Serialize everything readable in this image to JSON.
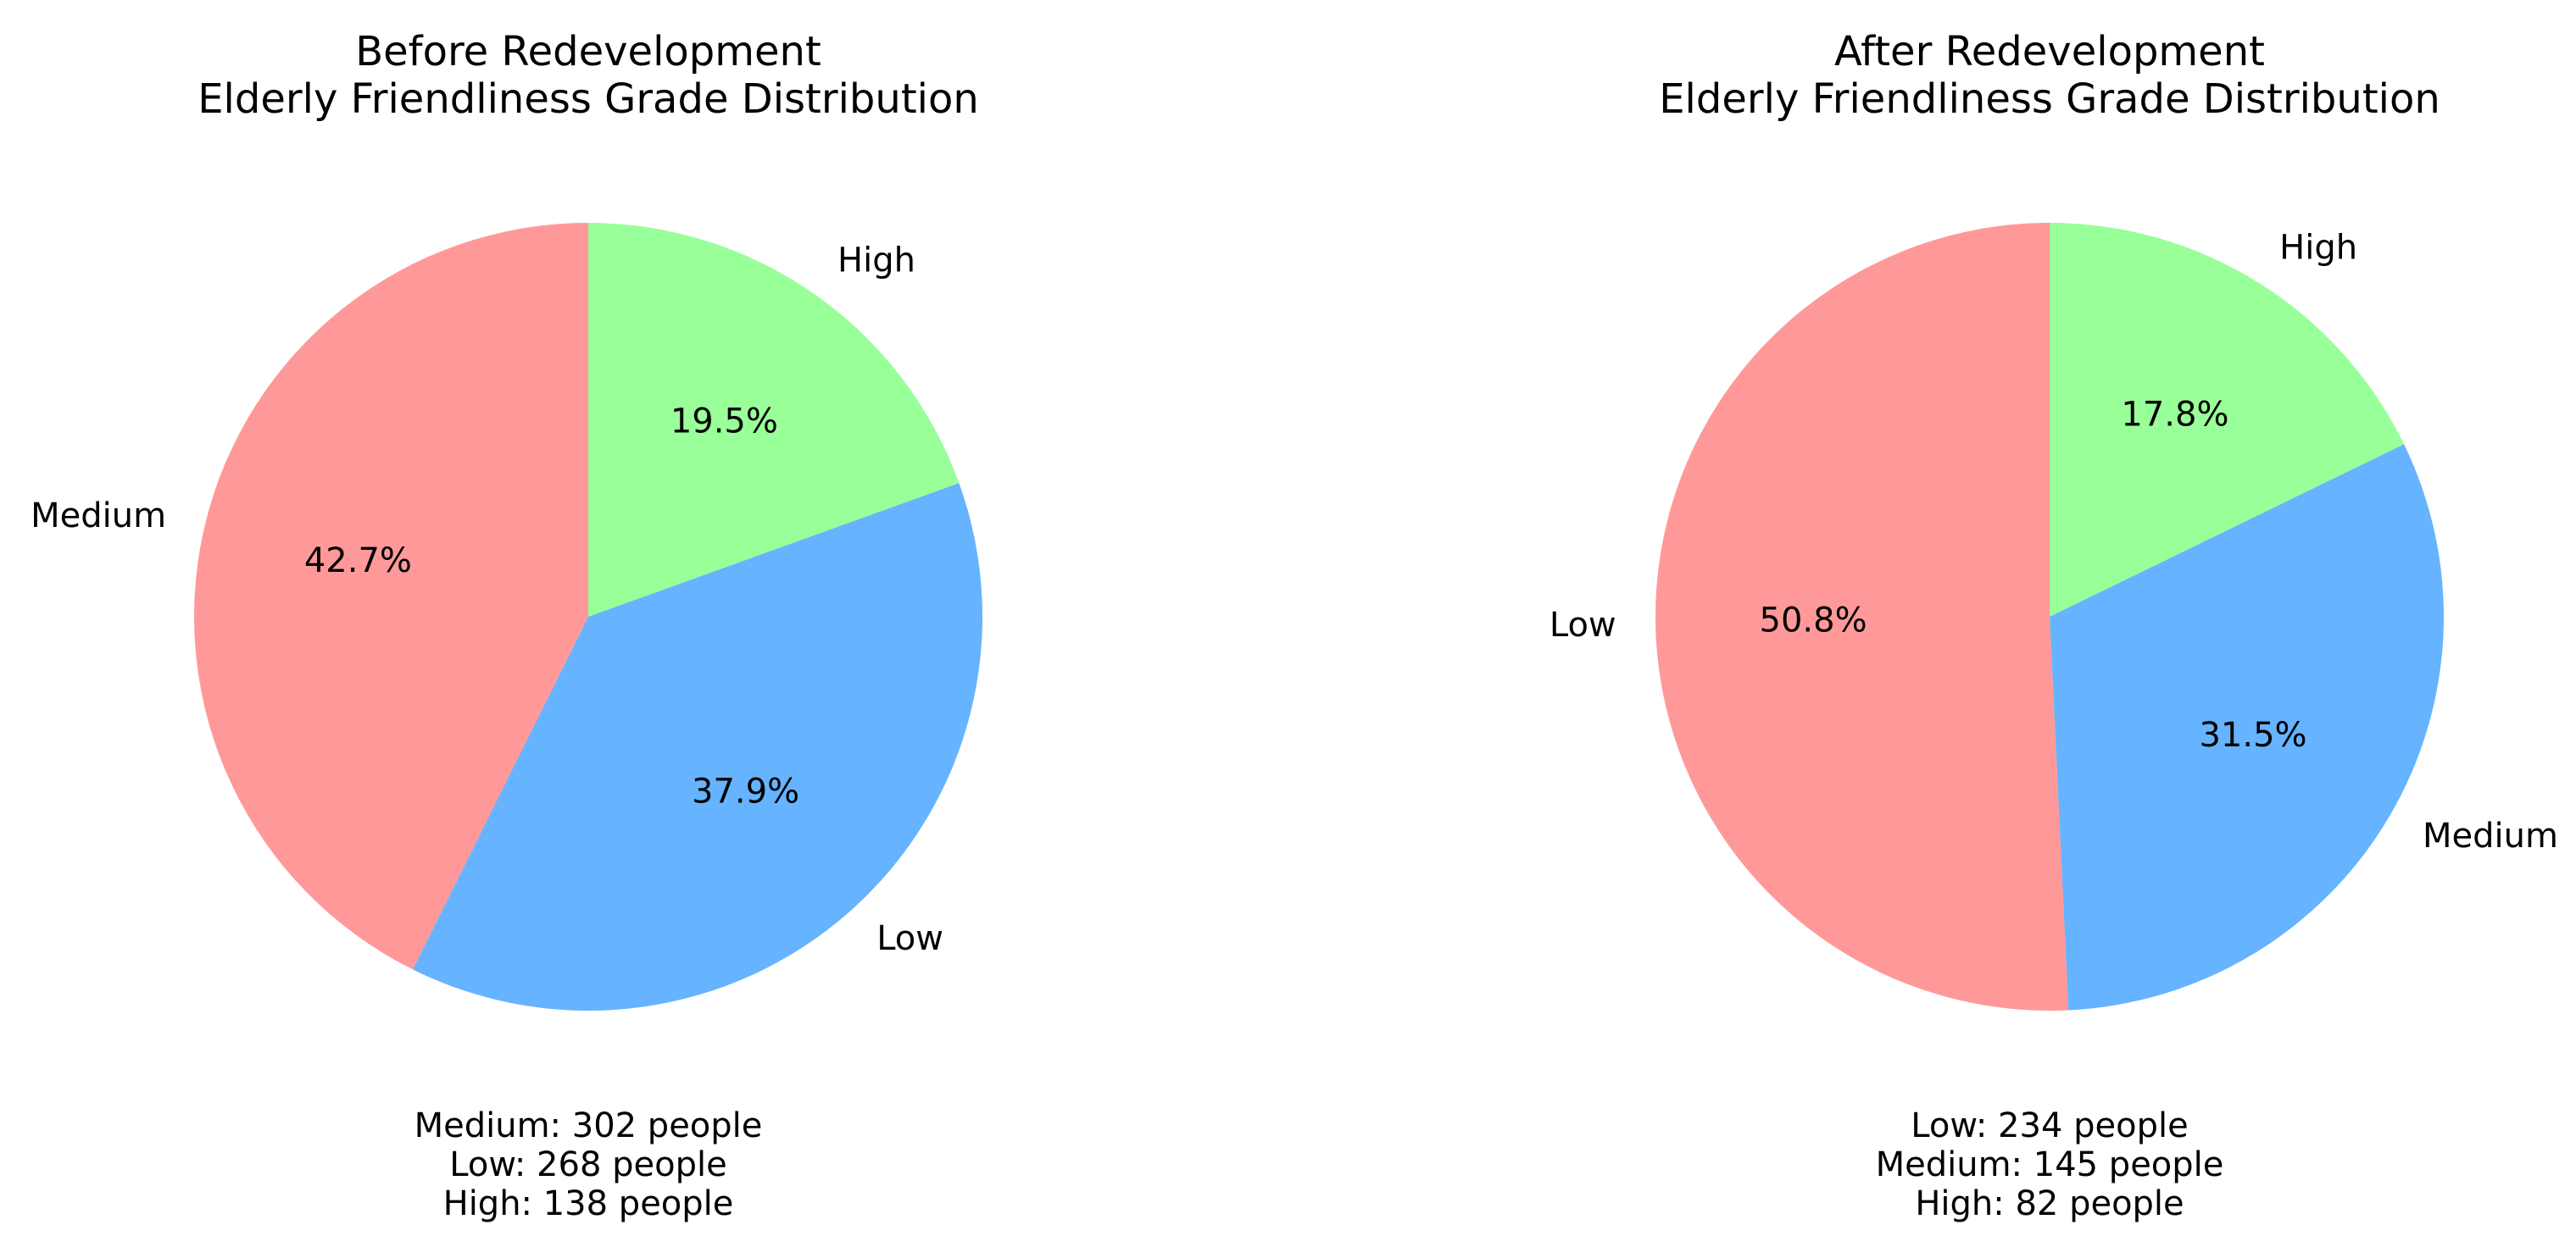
{
  "chart_data": [
    {
      "type": "pie",
      "title_lines": [
        "Before Redevelopment",
        "Elderly Friendliness Grade Distribution"
      ],
      "start_angle_deg": 90,
      "direction": "clockwise",
      "slices": [
        {
          "label": "High",
          "pct_text": "19.5%",
          "value": 138,
          "color": "#99ff99"
        },
        {
          "label": "Low",
          "pct_text": "37.9%",
          "value": 268,
          "color": "#66b3ff"
        },
        {
          "label": "Medium",
          "pct_text": "42.7%",
          "value": 302,
          "color": "#ff9999"
        }
      ],
      "counts": [
        "Medium: 302 people",
        "Low: 268 people",
        "High: 138 people"
      ]
    },
    {
      "type": "pie",
      "title_lines": [
        "After Redevelopment",
        "Elderly Friendliness Grade Distribution"
      ],
      "start_angle_deg": 90,
      "direction": "clockwise",
      "slices": [
        {
          "label": "High",
          "pct_text": "17.8%",
          "value": 82,
          "color": "#99ff99"
        },
        {
          "label": "Medium",
          "pct_text": "31.5%",
          "value": 145,
          "color": "#66b3ff"
        },
        {
          "label": "Low",
          "pct_text": "50.8%",
          "value": 234,
          "color": "#ff9999"
        }
      ],
      "counts": [
        "Low: 234 people",
        "Medium: 145 people",
        "High: 82 people"
      ]
    }
  ]
}
